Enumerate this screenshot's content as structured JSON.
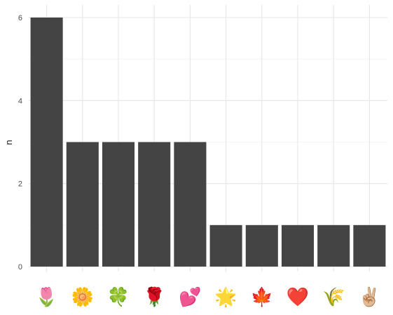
{
  "chart_data": {
    "type": "bar",
    "xlabel": "",
    "ylabel": "n",
    "ylim": [
      0,
      6
    ],
    "yticks": [
      0,
      2,
      4,
      6
    ],
    "grid": true,
    "bar_color": "#444444",
    "grid_major_color": "#e6e6e6",
    "grid_minor_color": "#f2f2f2",
    "categories": [
      {
        "label": "🌷",
        "icon": "tulip-icon"
      },
      {
        "label": "🌼",
        "icon": "blossom-icon"
      },
      {
        "label": "🍀",
        "icon": "four-leaf-clover-icon"
      },
      {
        "label": "🌹",
        "icon": "rose-icon"
      },
      {
        "label": "💕",
        "icon": "two-hearts-icon"
      },
      {
        "label": "🌟",
        "icon": "glowing-star-icon"
      },
      {
        "label": "🍁",
        "icon": "maple-leaf-icon"
      },
      {
        "label": "❤️",
        "icon": "red-heart-icon"
      },
      {
        "label": "🌾",
        "icon": "sheaf-of-rice-icon"
      },
      {
        "label": "✌🏼",
        "icon": "victory-hand-icon"
      }
    ],
    "values": [
      6,
      3,
      3,
      3,
      3,
      1,
      1,
      1,
      1,
      1
    ]
  }
}
